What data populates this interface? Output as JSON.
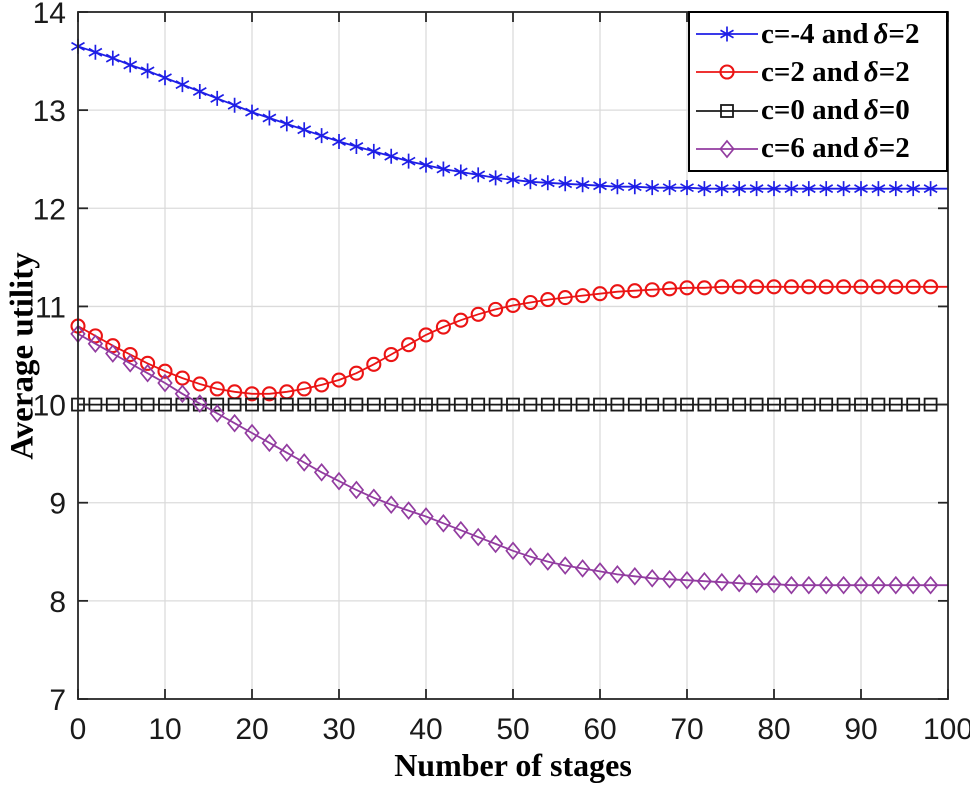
{
  "chart_data": {
    "type": "line",
    "title": "",
    "xlabel": "Number of stages",
    "ylabel": "Average utility",
    "xlim": [
      0,
      100
    ],
    "ylim": [
      7,
      14
    ],
    "x_ticks": [
      0,
      10,
      20,
      30,
      40,
      50,
      60,
      70,
      80,
      90,
      100
    ],
    "y_ticks": [
      7,
      8,
      9,
      10,
      11,
      12,
      13,
      14
    ],
    "grid": true,
    "legend_position": "top-right",
    "colors": {
      "axis": "#262626",
      "grid": "#DBDBDB",
      "tick_label": "#1A1A1A",
      "background": "#FFFFFF"
    },
    "x": [
      0,
      2,
      4,
      6,
      8,
      10,
      12,
      14,
      16,
      18,
      20,
      22,
      24,
      26,
      28,
      30,
      32,
      34,
      36,
      38,
      40,
      42,
      44,
      46,
      48,
      50,
      52,
      54,
      56,
      58,
      60,
      62,
      64,
      66,
      68,
      70,
      72,
      74,
      76,
      78,
      80,
      82,
      84,
      86,
      88,
      90,
      92,
      94,
      96,
      98,
      100
    ],
    "series": [
      {
        "id": "c-minus4-delta2",
        "label": "c=-4 and δ=2",
        "legend": {
          "pre": "c=-4 and",
          "delta": "δ",
          "post": "=2"
        },
        "color": "#1E1EE6",
        "marker": "asterisk",
        "values": [
          13.65,
          13.59,
          13.53,
          13.46,
          13.4,
          13.33,
          13.26,
          13.19,
          13.12,
          13.05,
          12.98,
          12.92,
          12.86,
          12.8,
          12.74,
          12.68,
          12.63,
          12.58,
          12.53,
          12.48,
          12.44,
          12.4,
          12.37,
          12.34,
          12.31,
          12.29,
          12.27,
          12.26,
          12.25,
          12.24,
          12.23,
          12.22,
          12.22,
          12.21,
          12.21,
          12.21,
          12.2,
          12.2,
          12.2,
          12.2,
          12.2,
          12.2,
          12.2,
          12.2,
          12.2,
          12.2,
          12.2,
          12.2,
          12.2,
          12.2,
          12.2
        ]
      },
      {
        "id": "c2-delta2",
        "label": "c=2 and δ=2",
        "legend": {
          "pre": "c=2 and",
          "delta": "δ",
          "post": "=2"
        },
        "color": "#EB1414",
        "marker": "circle",
        "values": [
          10.8,
          10.7,
          10.6,
          10.51,
          10.42,
          10.34,
          10.27,
          10.21,
          10.16,
          10.13,
          10.11,
          10.11,
          10.13,
          10.16,
          10.2,
          10.25,
          10.32,
          10.41,
          10.51,
          10.61,
          10.71,
          10.79,
          10.86,
          10.92,
          10.97,
          11.01,
          11.04,
          11.07,
          11.09,
          11.11,
          11.13,
          11.15,
          11.16,
          11.17,
          11.18,
          11.19,
          11.19,
          11.2,
          11.2,
          11.2,
          11.2,
          11.2,
          11.2,
          11.2,
          11.2,
          11.2,
          11.2,
          11.2,
          11.2,
          11.2,
          11.2
        ]
      },
      {
        "id": "c0-delta0",
        "label": "c=0 and δ=0",
        "legend": {
          "pre": "c=0 and",
          "delta": "δ",
          "post": "=0"
        },
        "color": "#1A1A1A",
        "marker": "square",
        "values": [
          10,
          10,
          10,
          10,
          10,
          10,
          10,
          10,
          10,
          10,
          10,
          10,
          10,
          10,
          10,
          10,
          10,
          10,
          10,
          10,
          10,
          10,
          10,
          10,
          10,
          10,
          10,
          10,
          10,
          10,
          10,
          10,
          10,
          10,
          10,
          10,
          10,
          10,
          10,
          10,
          10,
          10,
          10,
          10,
          10,
          10,
          10,
          10,
          10,
          10,
          10
        ]
      },
      {
        "id": "c6-delta2",
        "label": "c=6 and δ=2",
        "legend": {
          "pre": "c=6 and",
          "delta": "δ",
          "post": "=2"
        },
        "color": "#923CA0",
        "marker": "diamond",
        "values": [
          10.72,
          10.62,
          10.52,
          10.42,
          10.32,
          10.22,
          10.11,
          10.01,
          9.91,
          9.81,
          9.71,
          9.61,
          9.51,
          9.41,
          9.31,
          9.22,
          9.13,
          9.05,
          8.98,
          8.92,
          8.86,
          8.79,
          8.72,
          8.65,
          8.58,
          8.51,
          8.45,
          8.4,
          8.36,
          8.33,
          8.3,
          8.27,
          8.25,
          8.23,
          8.22,
          8.21,
          8.2,
          8.19,
          8.18,
          8.17,
          8.17,
          8.16,
          8.16,
          8.16,
          8.16,
          8.16,
          8.16,
          8.16,
          8.16,
          8.16,
          8.16
        ]
      }
    ]
  }
}
